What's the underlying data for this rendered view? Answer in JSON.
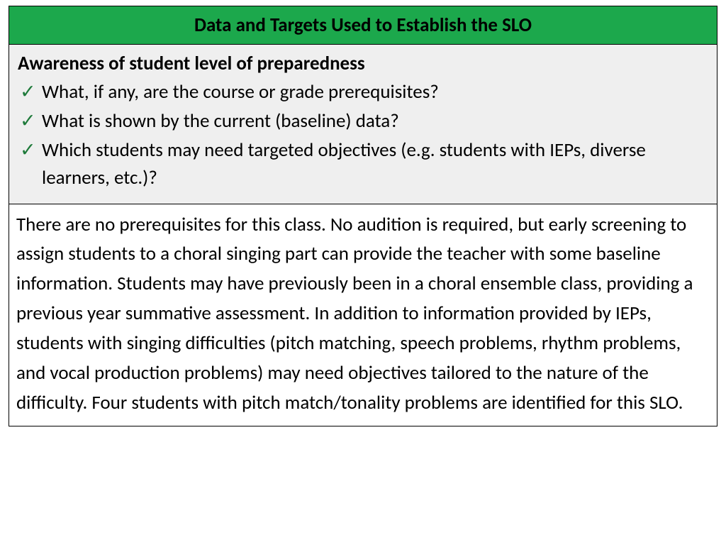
{
  "colors": {
    "header_bg": "#1ca84c",
    "questions_bg": "#efefef",
    "check_color": "#1e7a3a",
    "border": "#000000",
    "text": "#000000"
  },
  "header": {
    "title": "Data and Targets Used to Establish the SLO"
  },
  "questions": {
    "heading": "Awareness of student level of preparedness",
    "items": [
      "What, if any, are the course or grade prerequisites?",
      "What is shown by the current (baseline) data?",
      "Which students may need targeted objectives (e.g. students with IEPs, diverse learners, etc.)?"
    ]
  },
  "body": {
    "text": "There are no prerequisites for this class. No audition is required, but early screening to assign students to a choral singing part can provide the teacher with some baseline information. Students may have previously been in a choral ensemble class, providing a previous year summative assessment. In addition to information provided by IEPs, students with singing difficulties (pitch matching, speech problems, rhythm problems, and vocal production problems) may need objectives tailored to the nature of the difficulty. Four students with pitch match/tonality problems are identified for this SLO."
  },
  "checkmark": "✓"
}
